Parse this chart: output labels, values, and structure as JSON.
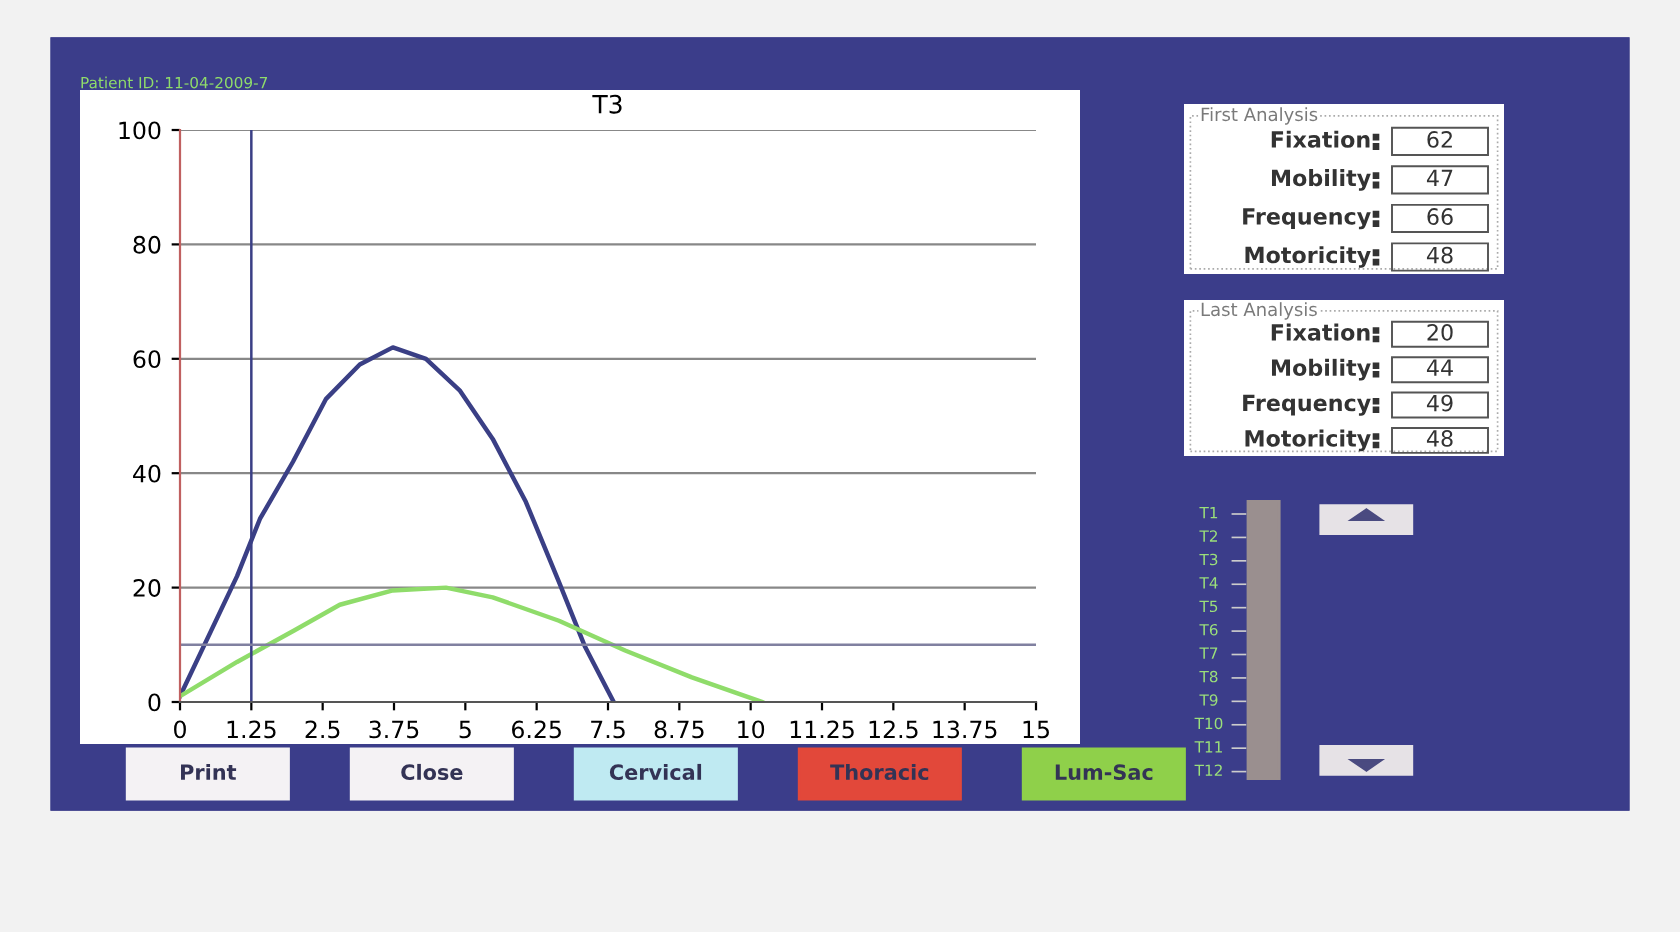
{
  "chart_data": [
    {
      "type": "line",
      "title": "T3",
      "xlim": [
        0,
        15
      ],
      "ylim": [
        0,
        100
      ],
      "xticks": [
        0,
        1.25,
        2.5,
        3.75,
        5,
        6.25,
        7.5,
        8.75,
        10,
        11.25,
        12.5,
        13.75,
        15
      ],
      "yticks": [
        0,
        20,
        40,
        60,
        80,
        100
      ],
      "grid": "y",
      "legend": false,
      "marker": "none",
      "line_style": "solid",
      "series": [
        {
          "color": "#3a3f85",
          "x": [
            0,
            1.0,
            1.4,
            1.98,
            2.56,
            3.15,
            3.73,
            4.31,
            4.9,
            5.48,
            6.06,
            6.64,
            7.1,
            7.6
          ],
          "values": [
            1,
            22,
            32,
            42,
            53,
            59,
            62,
            60,
            54.5,
            46,
            35,
            21,
            9.6,
            0
          ]
        },
        {
          "color": "#8fdc6a",
          "x": [
            0,
            1.0,
            2.0,
            2.8,
            3.73,
            4.66,
            5.48,
            6.64,
            7.8,
            8.97,
            10.2
          ],
          "values": [
            1,
            7,
            12.5,
            17,
            19.5,
            20,
            18.3,
            14.2,
            9,
            4.3,
            0
          ]
        }
      ],
      "ref_lines": [
        {
          "axis": "x",
          "value": 1.25,
          "color": "#3a3f85"
        },
        {
          "axis": "y",
          "value": 10,
          "color": "#8080a0"
        }
      ],
      "annotations": [
        "Patient ID: 11-04-2009-7"
      ]
    },
    {
      "type": "other",
      "title": "First Analysis",
      "categories": [
        "Fixation",
        "Mobility",
        "Frequency",
        "Motoricity"
      ],
      "values": [
        62,
        47,
        66,
        48
      ],
      "data_labels": true
    },
    {
      "type": "other",
      "title": "Last Analysis",
      "categories": [
        "Fixation",
        "Mobility",
        "Frequency",
        "Motoricity"
      ],
      "values": [
        20,
        44,
        49,
        48
      ],
      "data_labels": true
    },
    {
      "type": "other",
      "categories": [
        "T1",
        "T2",
        "T3",
        "T4",
        "T5",
        "T6",
        "T7",
        "T8",
        "T9",
        "T10",
        "T11",
        "T12"
      ]
    },
    {
      "type": "other",
      "categories": [
        "Print",
        "Close",
        "Cervical",
        "Thoracic",
        "Lum-Sac"
      ],
      "colors": [
        "#f4f2f4",
        "#f4f2f4",
        "#bfeaf2",
        "#e2483a",
        "#8fd04a"
      ]
    }
  ]
}
